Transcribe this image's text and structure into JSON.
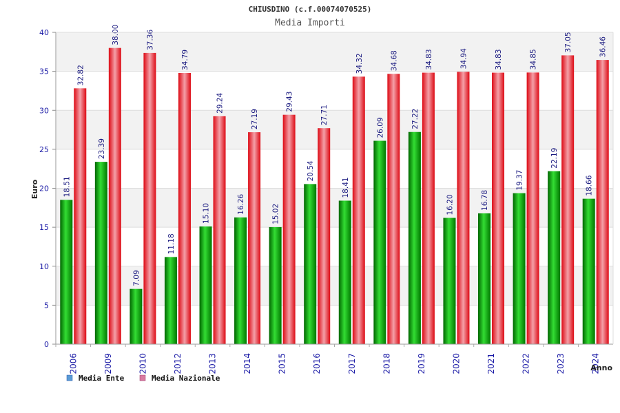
{
  "chart_data": {
    "type": "bar",
    "title": "CHIUSDINO (c.f.00074070525)",
    "subtitle": "Media Importi",
    "ylabel": "Euro",
    "xlabel": "Anno",
    "ylim": [
      0,
      40
    ],
    "yticks": [
      0,
      5,
      10,
      15,
      20,
      25,
      30,
      35,
      40
    ],
    "grid": true,
    "legend_position": "bottom-left",
    "categories": [
      "2006",
      "2009",
      "2010",
      "2012",
      "2013",
      "2014",
      "2015",
      "2016",
      "2017",
      "2018",
      "2019",
      "2020",
      "2021",
      "2022",
      "2023",
      "2024"
    ],
    "series": [
      {
        "name": "Media Ente",
        "color": "#00aa00",
        "legend_color": "#5b9bd5",
        "values": [
          18.51,
          23.39,
          7.09,
          11.18,
          15.1,
          16.26,
          15.02,
          20.54,
          18.41,
          26.09,
          27.22,
          16.2,
          16.78,
          19.37,
          22.19,
          18.66
        ],
        "labels": [
          "18.51",
          "23.39",
          "7.09",
          "11.18",
          "15.10",
          "16.26",
          "15.02",
          "20.54",
          "18.41",
          "26.09",
          "27.22",
          "16.20",
          "16.78",
          "19.37",
          "22.19",
          "18.66"
        ]
      },
      {
        "name": "Media Nazionale",
        "color": "#ee1c24",
        "legend_color": "#d97aa0",
        "values": [
          32.82,
          38.0,
          37.36,
          34.79,
          29.24,
          27.19,
          29.43,
          27.71,
          34.32,
          34.68,
          34.83,
          34.94,
          34.83,
          34.85,
          37.05,
          36.46
        ],
        "labels": [
          "32.82",
          "38.00",
          "37.36",
          "34.79",
          "29.24",
          "27.19",
          "29.43",
          "27.71",
          "34.32",
          "34.68",
          "34.83",
          "34.94",
          "34.83",
          "34.85",
          "37.05",
          "36.46"
        ]
      }
    ]
  }
}
